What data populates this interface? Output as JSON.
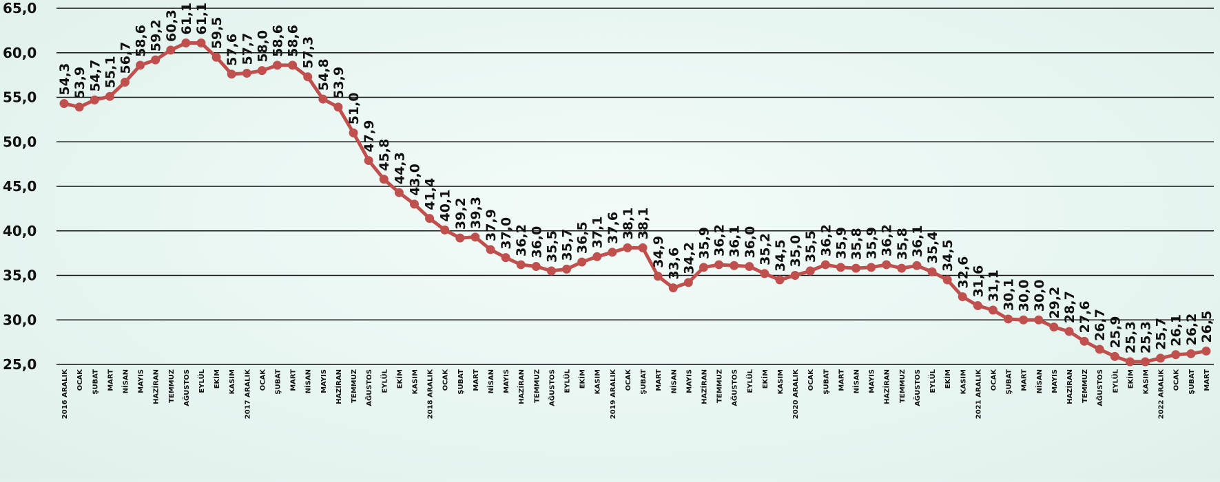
{
  "chart_data": {
    "type": "line",
    "title": "",
    "xlabel": "",
    "ylabel": "",
    "ylim": [
      25,
      65
    ],
    "yticks": [
      "25,0",
      "30,0",
      "35,0",
      "40,0",
      "45,0",
      "50,0",
      "55,0",
      "60,0",
      "65,0"
    ],
    "grid": true,
    "legend": "none",
    "line_color": "#c0504d",
    "categories": [
      "2016 ARALIK",
      "OCAK",
      "ŞUBAT",
      "MART",
      "NİSAN",
      "MAYIS",
      "HAZİRAN",
      "TEMMUZ",
      "AĞUSTOS",
      "EYLÜL",
      "EKİM",
      "KASIM",
      "2017 ARALIK",
      "OCAK",
      "ŞUBAT",
      "MART",
      "NİSAN",
      "MAYIS",
      "HAZİRAN",
      "TEMMUZ",
      "AĞUSTOS",
      "EYLÜL",
      "EKİM",
      "KASIM",
      "2018 ARALIK",
      "OCAK",
      "ŞUBAT",
      "MART",
      "NİSAN",
      "MAYIS",
      "HAZİRAN",
      "TEMMUZ",
      "AĞUSTOS",
      "EYLÜL",
      "EKİM",
      "KASIM",
      "2019 ARALIK",
      "OCAK",
      "ŞUBAT",
      "MART",
      "NİSAN",
      "MAYIS",
      "HAZİRAN",
      "TEMMUZ",
      "AĞUSTOS",
      "EYLÜL",
      "EKİM",
      "KASIM",
      "2020 ARALIK",
      "OCAK",
      "ŞUBAT",
      "MART",
      "NİSAN",
      "MAYIS",
      "HAZİRAN",
      "TEMMUZ",
      "AĞUSTOS",
      "EYLÜL",
      "EKİM",
      "KASIM",
      "2021 ARALIK",
      "OCAK",
      "ŞUBAT",
      "MART",
      "NİSAN",
      "MAYIS",
      "HAZİRAN",
      "TEMMUZ",
      "AĞUSTOS",
      "EYLÜL",
      "EKİM",
      "KASIM",
      "2022 ARALIK",
      "OCAK",
      "ŞUBAT",
      "MART"
    ],
    "values": [
      54.3,
      53.9,
      54.7,
      55.1,
      56.7,
      58.6,
      59.2,
      60.3,
      61.1,
      61.1,
      59.5,
      57.6,
      57.7,
      58.0,
      58.6,
      58.6,
      57.3,
      54.8,
      53.9,
      51.0,
      47.9,
      45.8,
      44.3,
      43.0,
      41.4,
      40.1,
      39.2,
      39.3,
      37.9,
      37.0,
      36.2,
      36.0,
      35.5,
      35.7,
      36.5,
      37.1,
      37.6,
      38.1,
      38.1,
      34.9,
      33.6,
      34.2,
      35.9,
      36.2,
      36.1,
      36.0,
      35.2,
      34.5,
      35.0,
      35.5,
      36.2,
      35.9,
      35.8,
      35.9,
      36.2,
      35.8,
      36.1,
      35.4,
      34.5,
      32.6,
      31.6,
      31.1,
      30.1,
      30.0,
      30.0,
      29.2,
      28.7,
      27.6,
      26.7,
      25.9,
      25.3,
      25.3,
      25.7,
      26.1,
      26.2,
      26.5
    ],
    "labels": [
      "54,3",
      "53,9",
      "54,7",
      "55,1",
      "56,7",
      "58,6",
      "59,2",
      "60,3",
      "61,1",
      "61,1",
      "59,5",
      "57,6",
      "57,7",
      "58,0",
      "58,6",
      "58,6",
      "57,3",
      "54,8",
      "53,9",
      "51,0",
      "47,9",
      "45,8",
      "44,3",
      "43,0",
      "41,4",
      "40,1",
      "39,2",
      "39,3",
      "37,9",
      "37,0",
      "36,2",
      "36,0",
      "35,5",
      "35,7",
      "36,5",
      "37,1",
      "37,6",
      "38,1",
      "38,1",
      "34,9",
      "33,6",
      "34,2",
      "35,9",
      "36,2",
      "36,1",
      "36,0",
      "35,2",
      "34,5",
      "35,0",
      "35,5",
      "36,2",
      "35,9",
      "35,8",
      "35,9",
      "36,2",
      "35,8",
      "36,1",
      "35,4",
      "34,5",
      "32,6",
      "31,6",
      "31,1",
      "30,1",
      "30,0",
      "30,0",
      "29,2",
      "28,7",
      "27,6",
      "26,7",
      "25,9",
      "25,3",
      "25,3",
      "25,7",
      "26,1",
      "26,2",
      "26,5"
    ]
  }
}
